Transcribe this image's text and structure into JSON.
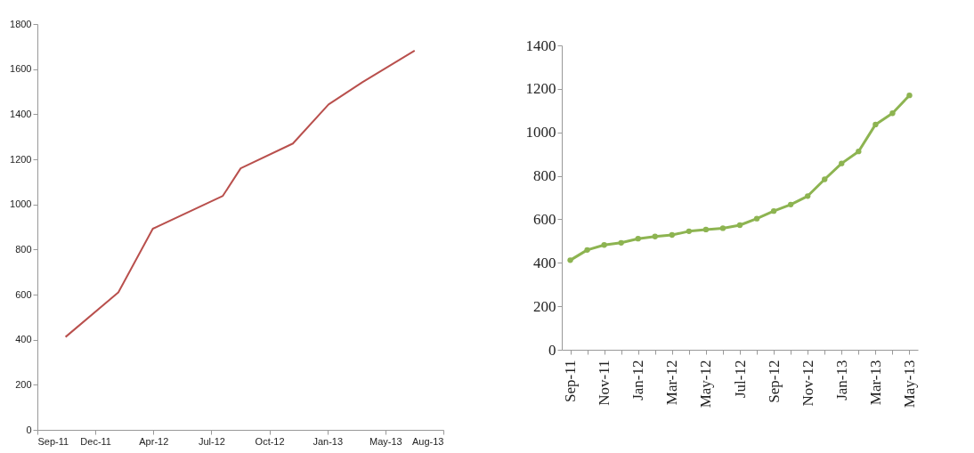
{
  "chart_data": [
    {
      "type": "line",
      "x": [
        "2011-11-01",
        "2012-02-01",
        "2012-04-01",
        "2012-08-01",
        "2012-09-01",
        "2012-12-01",
        "2013-02-01",
        "2013-04-01",
        "2013-07-01"
      ],
      "series": [
        {
          "color": "#b9504d",
          "values": [
            412,
            610,
            892,
            1038,
            1160,
            1270,
            1443,
            1542,
            1682
          ]
        }
      ],
      "xlim": [
        "2011-09-13",
        "2013-08-20"
      ],
      "xticks": [
        {
          "value": "2011-09-13",
          "label": "Sep-11"
        },
        {
          "value": "2011-12-23",
          "label": "Dec-11"
        },
        {
          "value": "2012-04-02",
          "label": "Apr-12"
        },
        {
          "value": "2012-07-12",
          "label": "Jul-12"
        },
        {
          "value": "2012-10-21",
          "label": "Oct-12"
        },
        {
          "value": "2013-01-30",
          "label": "Jan-13"
        },
        {
          "value": "2013-05-11",
          "label": "May-13"
        },
        {
          "value": "2013-08-20",
          "label": "Aug-13"
        }
      ],
      "ylim": [
        0,
        1800
      ],
      "yticks": [
        0,
        200,
        400,
        600,
        800,
        1000,
        1200,
        1400,
        1600,
        1800
      ],
      "grid": false,
      "marker": "none"
    },
    {
      "type": "line",
      "categories": [
        "Sep-11",
        null,
        "Nov-11",
        null,
        "Jan-12",
        null,
        "Mar-12",
        null,
        "May-12",
        null,
        "Jul-12",
        null,
        "Sep-12",
        null,
        "Nov-12",
        null,
        "Jan-13",
        null,
        "Mar-13",
        null,
        "May-13"
      ],
      "series": [
        {
          "color": "#8db451",
          "values": [
            412,
            459,
            482,
            492,
            511,
            521,
            528,
            545,
            553,
            559,
            573,
            603,
            638,
            668,
            707,
            784,
            857,
            912,
            1036,
            1088,
            1170
          ]
        }
      ],
      "ylim": [
        0,
        1400
      ],
      "yticks": [
        0,
        200,
        400,
        600,
        800,
        1000,
        1200,
        1400
      ],
      "grid": false,
      "marker": "circle"
    }
  ]
}
